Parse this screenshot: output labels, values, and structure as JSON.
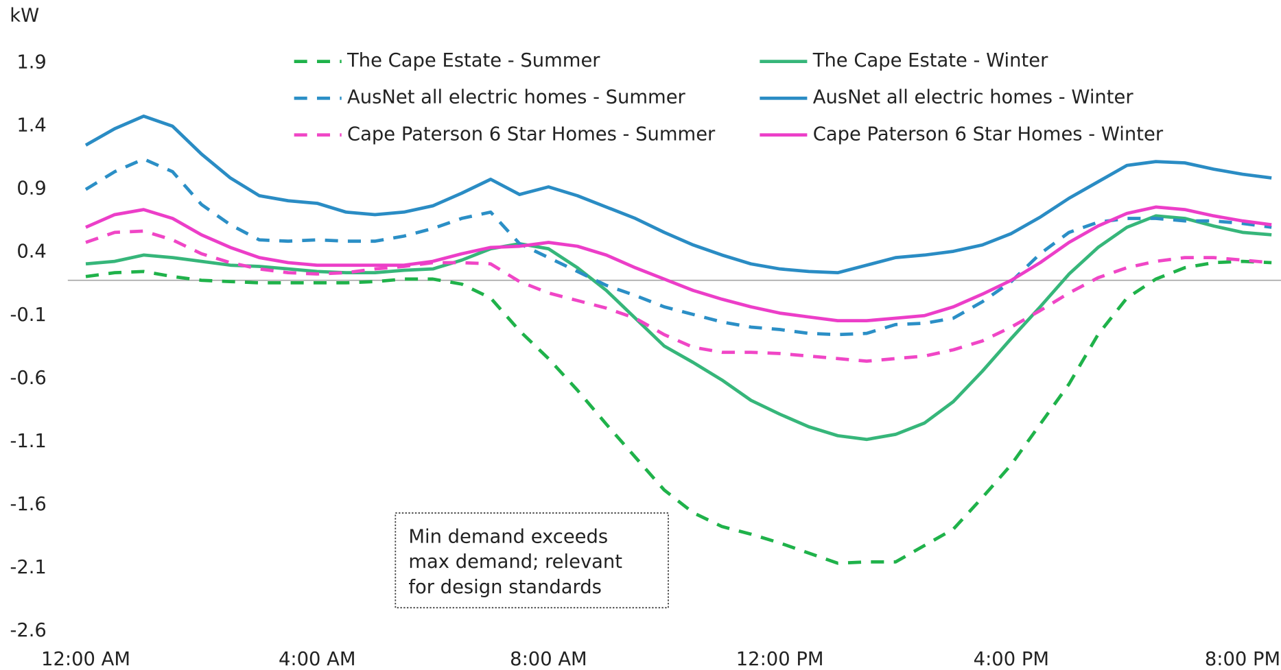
{
  "chart_data": {
    "type": "line",
    "y_label": "kW",
    "categories": [
      "12:00 AM",
      null,
      null,
      null,
      null,
      null,
      null,
      null,
      "4:00 AM",
      null,
      null,
      null,
      null,
      null,
      null,
      null,
      "8:00 AM",
      null,
      null,
      null,
      null,
      null,
      null,
      null,
      "12:00 PM",
      null,
      null,
      null,
      null,
      null,
      null,
      null,
      "4:00 PM",
      null,
      null,
      null,
      null,
      null,
      null,
      null,
      "8:00 PM",
      null
    ],
    "ylim": [
      -2.6,
      1.9
    ],
    "yticks": [
      1.9,
      1.4,
      0.9,
      0.4,
      -0.1,
      -0.6,
      -1.1,
      -1.6,
      -2.1,
      -2.6
    ],
    "legend": "top",
    "series": [
      {
        "name": "The Cape Estate - Summer",
        "color": "#1fb24a",
        "style": "dashed",
        "values": [
          0.21,
          0.24,
          0.25,
          0.21,
          0.18,
          0.17,
          0.16,
          0.16,
          0.16,
          0.16,
          0.17,
          0.19,
          0.19,
          0.15,
          0.04,
          -0.22,
          -0.44,
          -0.69,
          -0.96,
          -1.22,
          -1.48,
          -1.66,
          -1.77,
          -1.83,
          -1.9,
          -1.98,
          -2.06,
          -2.05,
          -2.05,
          -1.92,
          -1.79,
          -1.54,
          -1.28,
          -0.96,
          -0.64,
          -0.25,
          0.04,
          0.19,
          0.28,
          0.32,
          0.33,
          0.32
        ]
      },
      {
        "name": "The Cape Estate - Winter",
        "color": "#36b67a",
        "style": "solid",
        "values": [
          0.31,
          0.33,
          0.38,
          0.36,
          0.33,
          0.3,
          0.29,
          0.27,
          0.25,
          0.24,
          0.24,
          0.26,
          0.27,
          0.34,
          0.43,
          0.47,
          0.43,
          0.28,
          0.1,
          -0.12,
          -0.34,
          -0.47,
          -0.61,
          -0.77,
          -0.88,
          -0.98,
          -1.05,
          -1.08,
          -1.04,
          -0.95,
          -0.78,
          -0.54,
          -0.28,
          -0.03,
          0.23,
          0.44,
          0.6,
          0.69,
          0.67,
          0.61,
          0.56,
          0.54
        ]
      },
      {
        "name": "AusNet all electric homes - Summer",
        "color": "#2b8fc6",
        "style": "dashed",
        "values": [
          0.9,
          1.04,
          1.14,
          1.04,
          0.78,
          0.62,
          0.5,
          0.49,
          0.5,
          0.49,
          0.49,
          0.53,
          0.59,
          0.67,
          0.72,
          0.47,
          0.36,
          0.25,
          0.14,
          0.06,
          -0.03,
          -0.09,
          -0.15,
          -0.19,
          -0.21,
          -0.24,
          -0.25,
          -0.24,
          -0.17,
          -0.16,
          -0.12,
          0.01,
          0.17,
          0.39,
          0.56,
          0.64,
          0.67,
          0.67,
          0.65,
          0.65,
          0.63,
          0.6
        ]
      },
      {
        "name": "AusNet all electric homes - Winter",
        "color": "#2a8cc4",
        "style": "solid",
        "values": [
          1.25,
          1.38,
          1.48,
          1.4,
          1.18,
          0.99,
          0.85,
          0.81,
          0.79,
          0.72,
          0.7,
          0.72,
          0.77,
          0.87,
          0.98,
          0.86,
          0.92,
          0.85,
          0.76,
          0.67,
          0.56,
          0.46,
          0.38,
          0.31,
          0.27,
          0.25,
          0.24,
          0.3,
          0.36,
          0.38,
          0.41,
          0.46,
          0.55,
          0.68,
          0.83,
          0.96,
          1.09,
          1.12,
          1.11,
          1.06,
          1.02,
          0.99
        ]
      },
      {
        "name": "Cape Paterson 6 Star Homes - Summer",
        "color": "#f046c6",
        "style": "dashed",
        "values": [
          0.48,
          0.56,
          0.57,
          0.5,
          0.39,
          0.32,
          0.27,
          0.24,
          0.23,
          0.24,
          0.27,
          0.29,
          0.32,
          0.32,
          0.31,
          0.17,
          0.08,
          0.02,
          -0.04,
          -0.12,
          -0.25,
          -0.35,
          -0.39,
          -0.39,
          -0.4,
          -0.42,
          -0.44,
          -0.46,
          -0.44,
          -0.42,
          -0.37,
          -0.3,
          -0.19,
          -0.06,
          0.08,
          0.2,
          0.28,
          0.33,
          0.36,
          0.36,
          0.34,
          0.32
        ]
      },
      {
        "name": "Cape Paterson 6 Star Homes - Winter",
        "color": "#ec3ec8",
        "style": "solid",
        "values": [
          0.6,
          0.7,
          0.74,
          0.67,
          0.54,
          0.44,
          0.36,
          0.32,
          0.3,
          0.3,
          0.3,
          0.3,
          0.33,
          0.39,
          0.44,
          0.45,
          0.48,
          0.45,
          0.38,
          0.28,
          0.19,
          0.1,
          0.03,
          -0.03,
          -0.08,
          -0.11,
          -0.14,
          -0.14,
          -0.12,
          -0.1,
          -0.03,
          0.07,
          0.18,
          0.32,
          0.48,
          0.61,
          0.71,
          0.76,
          0.74,
          0.69,
          0.65,
          0.62
        ]
      }
    ],
    "annotation": [
      "Min demand exceeds",
      "max demand; relevant",
      "for design standards"
    ]
  }
}
